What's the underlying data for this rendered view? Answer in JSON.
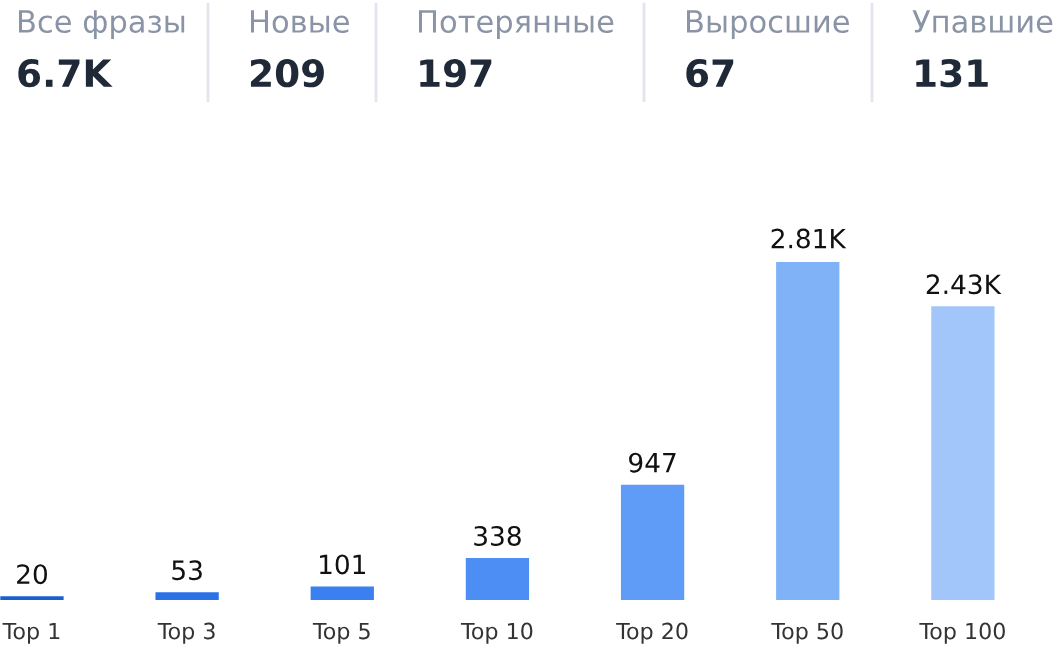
{
  "chart_data": [
    {
      "type": "other",
      "annotations": [
        "Все фразы",
        "6.7K",
        "Новые",
        "209",
        "Потерянные",
        "197",
        "Выросшие",
        "67",
        "Упавшие",
        "131"
      ]
    },
    {
      "type": "bar",
      "relative": false,
      "categories": [
        "Top 1",
        "Top 3",
        "Top 5",
        "Top 10",
        "Top 20",
        "Top 50",
        "Top 100"
      ],
      "values": [
        20,
        53,
        101,
        338,
        947,
        2810,
        2430
      ],
      "value_labels": [
        "20",
        "53",
        "101",
        "338",
        "947",
        "2.81K",
        "2.43K"
      ],
      "colors": [
        "#1a5fd0",
        "#2a72e6",
        "#3a80f0",
        "#4d8ef5",
        "#5f9cf7",
        "#80b2f8",
        "#a3c6fa"
      ],
      "grid": false,
      "legend": false
    }
  ]
}
